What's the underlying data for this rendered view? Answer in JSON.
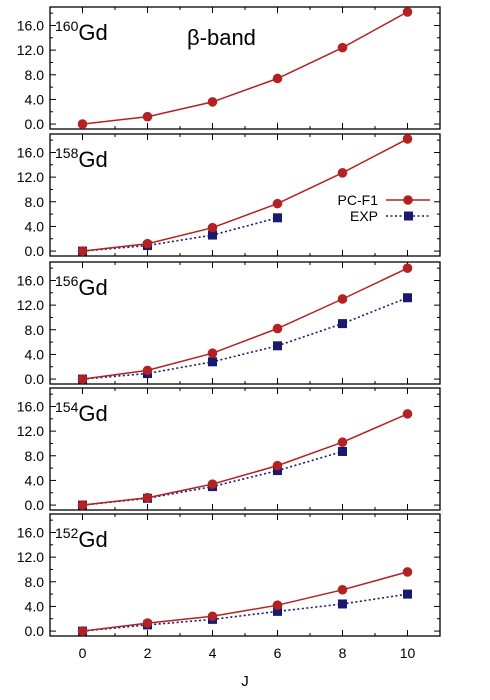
{
  "colors": {
    "pc_f1": "#b22222",
    "exp": "#191970",
    "axis": "#000000",
    "background": "#ffffff"
  },
  "band_title": "β-band",
  "chart_data": {
    "type": "line",
    "xlabel": "J",
    "ylabel": "",
    "xlim": [
      -1,
      11
    ],
    "ylim": [
      -0.8,
      19.0
    ],
    "xticks": [
      "0",
      "2",
      "4",
      "6",
      "8",
      "10"
    ],
    "yticks": [
      "0.0",
      "4.0",
      "8.0",
      "12.0",
      "16.0"
    ],
    "legend": {
      "placement": "right",
      "panel": 1,
      "entries": [
        "PC-F1",
        "EXP"
      ]
    },
    "panels": [
      {
        "mass": "160",
        "element": "Gd",
        "series": [
          {
            "name": "PC-F1",
            "style": "solid-circle",
            "x": [
              0,
              2,
              4,
              6,
              8,
              10
            ],
            "y": [
              0.0,
              1.2,
              3.6,
              7.4,
              12.4,
              18.2
            ]
          }
        ]
      },
      {
        "mass": "158",
        "element": "Gd",
        "series": [
          {
            "name": "PC-F1",
            "style": "solid-circle",
            "x": [
              0,
              2,
              4,
              6,
              8,
              10
            ],
            "y": [
              0.0,
              1.2,
              3.8,
              7.7,
              12.7,
              18.2
            ]
          },
          {
            "name": "EXP",
            "style": "dotted-square",
            "x": [
              0,
              2,
              4,
              6
            ],
            "y": [
              0.0,
              0.9,
              2.6,
              5.4
            ]
          }
        ]
      },
      {
        "mass": "156",
        "element": "Gd",
        "series": [
          {
            "name": "PC-F1",
            "style": "solid-circle",
            "x": [
              0,
              2,
              4,
              6,
              8,
              10
            ],
            "y": [
              0.0,
              1.4,
              4.2,
              8.2,
              13.0,
              18.0
            ]
          },
          {
            "name": "EXP",
            "style": "dotted-square",
            "x": [
              0,
              2,
              4,
              6,
              8,
              10
            ],
            "y": [
              0.0,
              0.9,
              2.8,
              5.4,
              9.0,
              13.2
            ]
          }
        ]
      },
      {
        "mass": "154",
        "element": "Gd",
        "series": [
          {
            "name": "PC-F1",
            "style": "solid-circle",
            "x": [
              0,
              2,
              4,
              6,
              8,
              10
            ],
            "y": [
              0.0,
              1.2,
              3.4,
              6.4,
              10.2,
              14.8
            ]
          },
          {
            "name": "EXP",
            "style": "dotted-square",
            "x": [
              0,
              2,
              4,
              6,
              8
            ],
            "y": [
              0.0,
              1.1,
              3.0,
              5.6,
              8.7
            ]
          }
        ]
      },
      {
        "mass": "152",
        "element": "Gd",
        "series": [
          {
            "name": "PC-F1",
            "style": "solid-circle",
            "x": [
              0,
              2,
              4,
              6,
              8,
              10
            ],
            "y": [
              0.0,
              1.3,
              2.4,
              4.2,
              6.7,
              9.6
            ]
          },
          {
            "name": "EXP",
            "style": "dotted-square",
            "x": [
              0,
              2,
              4,
              6,
              8,
              10
            ],
            "y": [
              0.0,
              1.0,
              1.9,
              3.2,
              4.4,
              6.0
            ]
          }
        ]
      }
    ]
  }
}
